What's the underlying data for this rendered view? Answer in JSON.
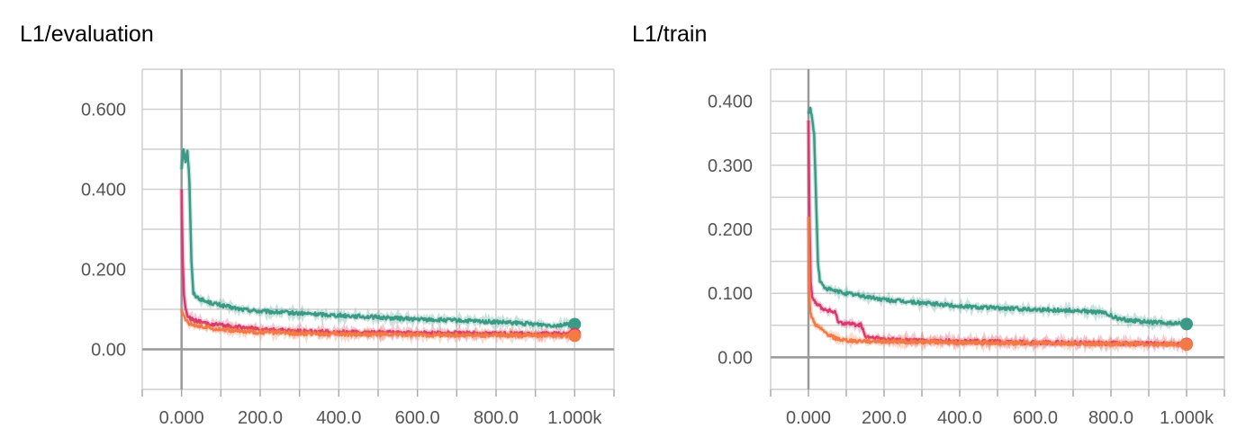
{
  "chart_data": [
    {
      "type": "line",
      "title": "L1/evaluation",
      "xlabel": "",
      "ylabel": "",
      "xlim": [
        -100,
        1100
      ],
      "ylim": [
        -0.1,
        0.7
      ],
      "x_tick_labels": [
        "0.000",
        "200.0",
        "400.0",
        "600.0",
        "800.0",
        "1.000k"
      ],
      "x_tick_values": [
        0,
        200,
        400,
        600,
        800,
        1000
      ],
      "y_tick_labels": [
        "0.00",
        "0.200",
        "0.400",
        "0.600"
      ],
      "y_tick_values": [
        0,
        0.2,
        0.4,
        0.6
      ],
      "grid": true,
      "series": [
        {
          "color": "#3a9a85",
          "x": [
            0,
            5,
            10,
            15,
            20,
            25,
            30,
            40,
            60,
            80,
            100,
            150,
            200,
            300,
            400,
            500,
            600,
            700,
            800,
            900,
            950,
            1000
          ],
          "y": [
            0.45,
            0.5,
            0.47,
            0.5,
            0.42,
            0.22,
            0.14,
            0.13,
            0.12,
            0.115,
            0.11,
            0.1,
            0.095,
            0.09,
            0.085,
            0.08,
            0.075,
            0.072,
            0.068,
            0.063,
            0.06,
            0.063
          ],
          "end_value": 0.063
        },
        {
          "color": "#d63a6e",
          "x": [
            0,
            3,
            6,
            10,
            15,
            25,
            40,
            60,
            100,
            150,
            200,
            300,
            400,
            500,
            600,
            800,
            1000
          ],
          "y": [
            0.4,
            0.22,
            0.14,
            0.1,
            0.085,
            0.075,
            0.07,
            0.065,
            0.06,
            0.055,
            0.05,
            0.045,
            0.043,
            0.042,
            0.041,
            0.04,
            0.038
          ],
          "end_value": 0.038
        },
        {
          "color": "#f47a45",
          "x": [
            0,
            5,
            10,
            20,
            40,
            60,
            100,
            150,
            200,
            300,
            400,
            600,
            800,
            1000
          ],
          "y": [
            0.1,
            0.085,
            0.075,
            0.065,
            0.06,
            0.055,
            0.05,
            0.045,
            0.043,
            0.04,
            0.038,
            0.036,
            0.035,
            0.034
          ],
          "end_value": 0.034
        }
      ]
    },
    {
      "type": "line",
      "title": "L1/train",
      "xlabel": "",
      "ylabel": "",
      "xlim": [
        -100,
        1100
      ],
      "ylim": [
        -0.05,
        0.45
      ],
      "x_tick_labels": [
        "0.000",
        "200.0",
        "400.0",
        "600.0",
        "800.0",
        "1.000k"
      ],
      "x_tick_values": [
        0,
        200,
        400,
        600,
        800,
        1000
      ],
      "y_tick_labels": [
        "0.00",
        "0.100",
        "0.200",
        "0.300",
        "0.400"
      ],
      "y_tick_values": [
        0,
        0.1,
        0.2,
        0.3,
        0.4
      ],
      "grid": true,
      "series": [
        {
          "color": "#3a9a85",
          "x": [
            0,
            5,
            10,
            15,
            20,
            25,
            30,
            40,
            60,
            100,
            150,
            200,
            300,
            400,
            500,
            600,
            700,
            780,
            820,
            900,
            1000
          ],
          "y": [
            0.38,
            0.39,
            0.37,
            0.35,
            0.25,
            0.15,
            0.12,
            0.11,
            0.105,
            0.1,
            0.095,
            0.09,
            0.085,
            0.08,
            0.077,
            0.075,
            0.073,
            0.07,
            0.06,
            0.055,
            0.052
          ],
          "end_value": 0.052
        },
        {
          "color": "#d63a6e",
          "x": [
            0,
            3,
            6,
            10,
            20,
            40,
            70,
            80,
            140,
            150,
            200,
            300,
            400,
            600,
            800,
            1000
          ],
          "y": [
            0.37,
            0.2,
            0.12,
            0.095,
            0.085,
            0.075,
            0.07,
            0.055,
            0.05,
            0.032,
            0.028,
            0.026,
            0.025,
            0.023,
            0.022,
            0.021
          ],
          "end_value": 0.021
        },
        {
          "color": "#f47a45",
          "x": [
            0,
            2,
            5,
            10,
            20,
            40,
            60,
            80,
            100,
            150,
            200,
            400,
            600,
            800,
            1000
          ],
          "y": [
            0.22,
            0.1,
            0.07,
            0.06,
            0.05,
            0.04,
            0.033,
            0.028,
            0.026,
            0.025,
            0.025,
            0.023,
            0.022,
            0.021,
            0.02
          ],
          "end_value": 0.02
        }
      ]
    }
  ]
}
